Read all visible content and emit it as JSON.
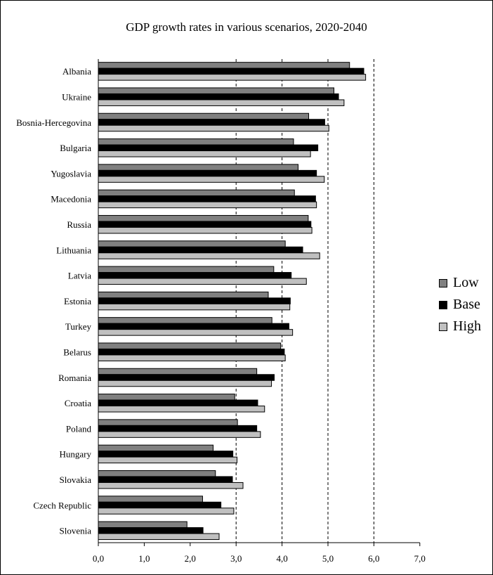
{
  "chart_data": {
    "type": "bar",
    "orientation": "horizontal",
    "title": "GDP growth rates in various scenarios, 2020-2040",
    "categories": [
      "Albania",
      "Ukraine",
      "Bosnia-Hercegovina",
      "Bulgaria",
      "Yugoslavia",
      "Macedonia",
      "Russia",
      "Lithuania",
      "Latvia",
      "Estonia",
      "Turkey",
      "Belarus",
      "Romania",
      "Croatia",
      "Poland",
      "Hungary",
      "Slovakia",
      "Czech Republic",
      "Slovenia"
    ],
    "series": [
      {
        "name": "Low",
        "color": "#808080",
        "values": [
          5.47,
          5.13,
          4.58,
          4.25,
          4.35,
          4.27,
          4.57,
          4.07,
          3.82,
          3.7,
          3.78,
          3.97,
          3.45,
          2.97,
          3.03,
          2.5,
          2.55,
          2.27,
          1.93
        ]
      },
      {
        "name": "Base",
        "color": "#000000",
        "values": [
          5.78,
          5.23,
          4.93,
          4.78,
          4.75,
          4.73,
          4.63,
          4.45,
          4.2,
          4.18,
          4.15,
          4.05,
          3.83,
          3.47,
          3.45,
          2.93,
          2.92,
          2.67,
          2.28
        ]
      },
      {
        "name": "High",
        "color": "#c0c0c0",
        "values": [
          5.82,
          5.35,
          5.02,
          4.62,
          4.92,
          4.75,
          4.65,
          4.82,
          4.53,
          4.17,
          4.23,
          4.07,
          3.77,
          3.62,
          3.53,
          3.02,
          3.15,
          2.95,
          2.63
        ]
      }
    ],
    "xlim": [
      0,
      7
    ],
    "x_ticks": [
      "0,0",
      "1,0",
      "2,0",
      "3,0",
      "4,0",
      "5,0",
      "6,0",
      "7,0"
    ],
    "gridlines": "vertical dashed at 3,0 4,0 5,0 6,0",
    "legend_position": "right"
  }
}
